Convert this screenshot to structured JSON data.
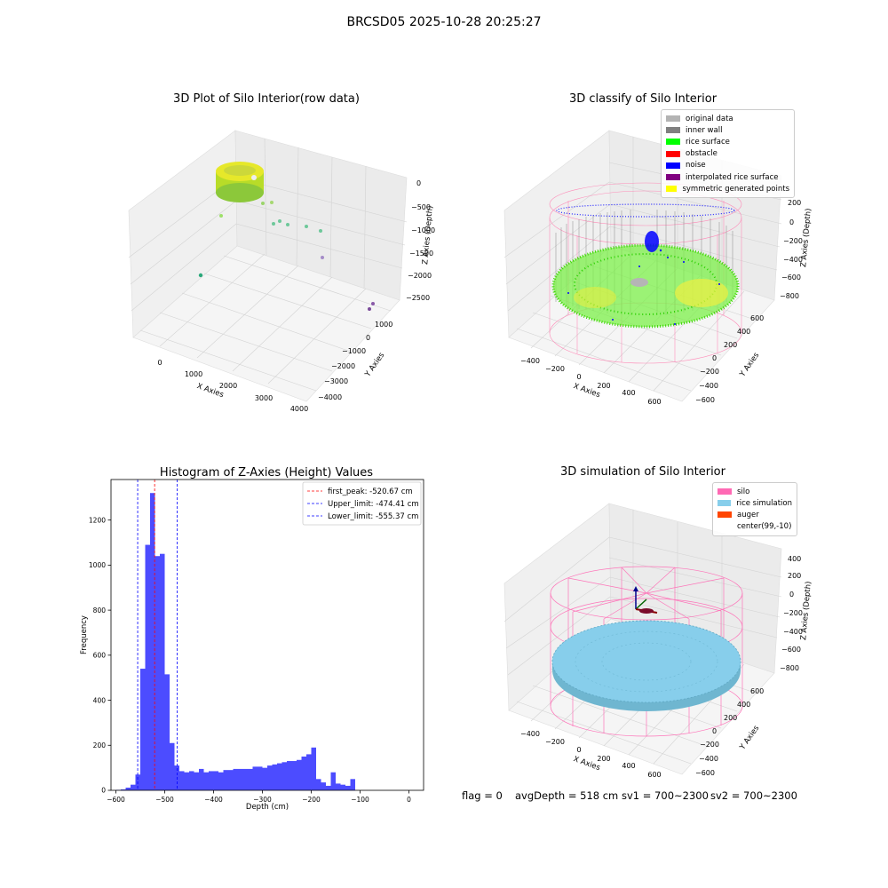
{
  "suptitle": "BRCSD05 2025-10-28 20:25:27",
  "panels": {
    "raw": {
      "title": "3D Plot of Silo Interior(row data)",
      "x_label": "X Axies",
      "y_label": "Y Axies",
      "z_label": "Z Axies (Depth)",
      "x_ticks": [
        "0",
        "1000",
        "2000",
        "3000",
        "4000"
      ],
      "y_ticks": [
        "1000",
        "0",
        "−1000",
        "−2000",
        "−3000",
        "−4000"
      ],
      "z_ticks": [
        "0",
        "−500",
        "−1000",
        "−1500",
        "−2000",
        "−2500"
      ]
    },
    "classify": {
      "title": "3D classify of Silo Interior",
      "x_label": "X Axies",
      "y_label": "Y Axies",
      "z_label": "Z Axies (Depth)",
      "x_ticks": [
        "−400",
        "−200",
        "0",
        "200",
        "400",
        "600"
      ],
      "y_ticks": [
        "600",
        "400",
        "200",
        "0",
        "−200",
        "−400",
        "−600"
      ],
      "z_ticks": [
        "200",
        "0",
        "−200",
        "−400",
        "−600",
        "−800"
      ],
      "legend": [
        {
          "label": "original data",
          "color": "#b3b3b3"
        },
        {
          "label": "inner wall",
          "color": "#808080"
        },
        {
          "label": "rice surface",
          "color": "#00ff00"
        },
        {
          "label": "obstacle",
          "color": "#ff0000"
        },
        {
          "label": "noise",
          "color": "#0000ff"
        },
        {
          "label": "interpolated rice surface",
          "color": "#800080"
        },
        {
          "label": "symmetric generated points",
          "color": "#ffff00"
        }
      ]
    },
    "simulation": {
      "title": "3D simulation of Silo Interior",
      "x_label": "X Axies",
      "y_label": "Y Axies",
      "z_label": "Z Axies (Depth)",
      "x_ticks": [
        "−400",
        "−200",
        "0",
        "200",
        "400",
        "600"
      ],
      "y_ticks": [
        "600",
        "400",
        "200",
        "0",
        "−200",
        "−400",
        "−600"
      ],
      "z_ticks": [
        "400",
        "200",
        "0",
        "−200",
        "−400",
        "−600",
        "−800"
      ],
      "legend": [
        {
          "label": "silo",
          "color": "#ff69b4"
        },
        {
          "label": "rice simulation",
          "color": "#87ceeb"
        },
        {
          "label": "auger",
          "color": "#ff4500"
        },
        {
          "label": "center(99,-10)",
          "color": ""
        }
      ]
    }
  },
  "footer": {
    "flag": "flag = 0",
    "avg_depth": "avgDepth = 518 cm",
    "sv1": "sv1 = 700~2300",
    "sv2": "sv2 = 700~2300"
  },
  "chart_data": [
    {
      "type": "scatter",
      "title": "3D Plot of Silo Interior(row data)",
      "xlabel": "X Axies",
      "ylabel": "Y Axies",
      "zlabel": "Z Axies (Depth)",
      "xlim": [
        -500,
        4000
      ],
      "ylim": [
        -4500,
        1500
      ],
      "zlim": [
        -2800,
        100
      ],
      "grid": true
    },
    {
      "type": "scatter",
      "title": "3D classify of Silo Interior",
      "xlabel": "X Axies",
      "ylabel": "Y Axies",
      "zlabel": "Z Axies (Depth)",
      "legend_position": "top-right",
      "series": [
        {
          "name": "original data"
        },
        {
          "name": "inner wall"
        },
        {
          "name": "rice surface"
        },
        {
          "name": "obstacle"
        },
        {
          "name": "noise"
        },
        {
          "name": "interpolated rice surface"
        },
        {
          "name": "symmetric generated points"
        }
      ],
      "grid": true
    },
    {
      "type": "bar",
      "title": "Histogram of Z-Axies (Height) Values",
      "xlabel": "Depth (cm)",
      "ylabel": "Frequency",
      "xlim": [
        -610,
        30
      ],
      "ylim": [
        0,
        1380
      ],
      "x_ticks": [
        -600,
        -500,
        -400,
        -300,
        -200,
        -100,
        0
      ],
      "y_ticks": [
        0,
        200,
        400,
        600,
        800,
        1000,
        1200
      ],
      "bin_width": 10,
      "bins_start": [
        -600,
        -590,
        -580,
        -570,
        -560,
        -550,
        -540,
        -530,
        -520,
        -510,
        -500,
        -490,
        -480,
        -470,
        -460,
        -450,
        -440,
        -430,
        -420,
        -410,
        -400,
        -390,
        -380,
        -370,
        -360,
        -350,
        -340,
        -330,
        -320,
        -310,
        -300,
        -290,
        -280,
        -270,
        -260,
        -250,
        -240,
        -230,
        -220,
        -210,
        -200,
        -190,
        -180,
        -170,
        -160,
        -150,
        -140,
        -130,
        -120,
        -110,
        -100,
        -90,
        -80,
        -70,
        -60,
        -50,
        -40,
        -30,
        -20,
        -10,
        0
      ],
      "values": [
        2,
        4,
        12,
        25,
        70,
        540,
        1090,
        1320,
        1040,
        1050,
        515,
        210,
        110,
        85,
        80,
        85,
        80,
        95,
        80,
        85,
        85,
        80,
        90,
        90,
        95,
        95,
        95,
        95,
        105,
        105,
        100,
        110,
        115,
        120,
        125,
        130,
        130,
        135,
        150,
        160,
        190,
        50,
        35,
        20,
        80,
        30,
        25,
        20,
        50,
        0,
        0,
        0,
        0,
        0,
        0,
        0,
        0,
        0,
        0,
        0,
        0
      ],
      "color": "#0000ff",
      "vlines": [
        {
          "name": "first_peak: -520.67 cm",
          "x": -520.67,
          "color": "#ff0000"
        },
        {
          "name": "Upper_limit: -474.41 cm",
          "x": -474.41,
          "color": "#0000ff"
        },
        {
          "name": "Lower_limit: -555.37 cm",
          "x": -555.37,
          "color": "#0000ff"
        }
      ],
      "legend_position": "top-right"
    },
    {
      "type": "scatter",
      "title": "3D simulation of Silo Interior",
      "xlabel": "X Axies",
      "ylabel": "Y Axies",
      "zlabel": "Z Axies (Depth)",
      "legend_position": "top-right",
      "series": [
        {
          "name": "silo"
        },
        {
          "name": "rice simulation"
        },
        {
          "name": "auger"
        },
        {
          "name": "center(99,-10)"
        }
      ],
      "grid": true
    }
  ]
}
